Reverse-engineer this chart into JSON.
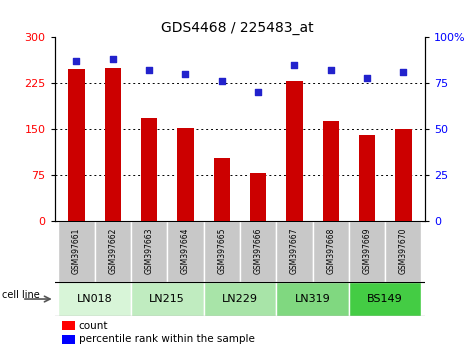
{
  "title": "GDS4468 / 225483_at",
  "samples": [
    "GSM397661",
    "GSM397662",
    "GSM397663",
    "GSM397664",
    "GSM397665",
    "GSM397666",
    "GSM397667",
    "GSM397668",
    "GSM397669",
    "GSM397670"
  ],
  "counts": [
    248,
    250,
    168,
    152,
    103,
    78,
    228,
    163,
    140,
    150
  ],
  "percentiles": [
    87,
    88,
    82,
    80,
    76,
    70,
    85,
    82,
    78,
    81
  ],
  "cell_lines": [
    {
      "name": "LN018",
      "start": 0,
      "end": 1,
      "color": "#d8f5d8"
    },
    {
      "name": "LN215",
      "start": 2,
      "end": 3,
      "color": "#c0ecc0"
    },
    {
      "name": "LN229",
      "start": 4,
      "end": 5,
      "color": "#a8e4a8"
    },
    {
      "name": "LN319",
      "start": 6,
      "end": 7,
      "color": "#80d880"
    },
    {
      "name": "BS149",
      "start": 8,
      "end": 9,
      "color": "#44cc44"
    }
  ],
  "left_ylim": [
    0,
    300
  ],
  "right_ylim": [
    0,
    100
  ],
  "left_yticks": [
    0,
    75,
    150,
    225,
    300
  ],
  "right_yticks": [
    0,
    25,
    50,
    75,
    100
  ],
  "bar_color": "#cc0000",
  "dot_color": "#2222cc",
  "bg_color": "#ffffff",
  "sample_box_color": "#c8c8c8",
  "grid_color": "#000000",
  "dotted_gridlines": [
    75,
    150,
    225
  ]
}
